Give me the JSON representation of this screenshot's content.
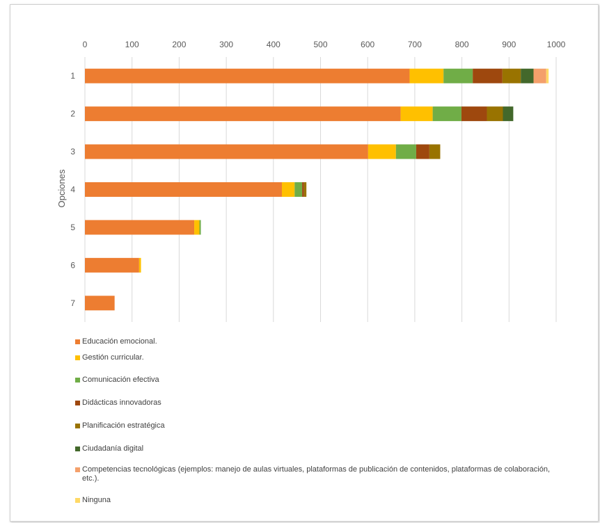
{
  "chart_data": {
    "type": "bar",
    "orientation": "horizontal",
    "stacked": true,
    "ylabel": "Opciones",
    "categories": [
      "1",
      "2",
      "3",
      "4",
      "5",
      "6",
      "7"
    ],
    "x_ticks": [
      "0",
      "100",
      "200",
      "300",
      "400",
      "500",
      "600",
      "700",
      "800",
      "900",
      "1000"
    ],
    "xlim": [
      0,
      1000
    ],
    "x_axis_position": "top",
    "grid": true,
    "legend_position": "bottom",
    "series": [
      {
        "name": "Educación emocional.",
        "color": "#ED7D31",
        "values": [
          689,
          670,
          601,
          418,
          232,
          115,
          63
        ]
      },
      {
        "name": "Gestión curricular.",
        "color": "#FFC000",
        "values": [
          72,
          68,
          59,
          27,
          11,
          4,
          0
        ]
      },
      {
        "name": "Comunicación efectiva",
        "color": "#70AD47",
        "values": [
          62,
          61,
          43,
          16,
          3,
          0,
          0
        ]
      },
      {
        "name": "Didácticas innovadoras",
        "color": "#9E480E",
        "values": [
          63,
          54,
          28,
          4,
          0,
          0,
          0
        ]
      },
      {
        "name": "Planificación estratégica",
        "color": "#997300",
        "values": [
          39,
          34,
          23,
          5,
          0,
          0,
          0
        ]
      },
      {
        "name": "Ciudadanía digital",
        "color": "#43682B",
        "values": [
          27,
          22,
          0,
          0,
          0,
          0,
          0
        ]
      },
      {
        "name": "Competencias tecnológicas (ejemplos: manejo de aulas virtuales, plataformas de publicación de contenidos, plataformas de colaboración, etc.).",
        "color": "#F4A06B",
        "values": [
          27,
          0,
          0,
          0,
          0,
          0,
          0
        ]
      },
      {
        "name": "Ninguna",
        "color": "#FFD966",
        "values": [
          5,
          0,
          0,
          0,
          0,
          0,
          0
        ]
      }
    ]
  }
}
